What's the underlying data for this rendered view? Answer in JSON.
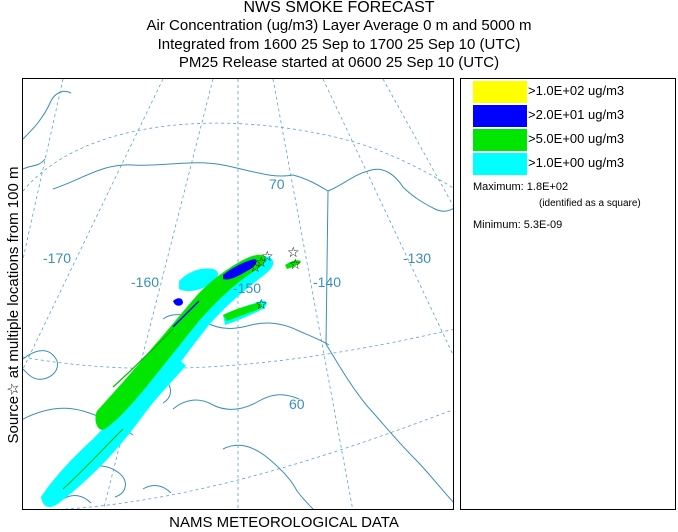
{
  "header": {
    "title": "NWS SMOKE FORECAST",
    "line2": "Air Concentration (ug/m3) Layer Average    0 m and  5000 m",
    "line3": "Integrated from 1600 25 Sep to 1700 25 Sep 10 (UTC)",
    "line4": "PM25 Release started at 0600 25 Sep 10 (UTC)"
  },
  "side_label": "Source☆ at multiple locations  from  100 m",
  "footer": "NAMS METEOROLOGICAL DATA",
  "map": {
    "graticule_labels": {
      "lon_m170": "-170",
      "lon_m160": "-160",
      "lon_m150": "-150",
      "lon_m140": "-140",
      "lon_m130": "-130",
      "lat_70": "70",
      "lat_60": "60"
    }
  },
  "legend": {
    "items": [
      {
        "color": "#ffff00",
        "label": ">1.0E+02 ug/m3"
      },
      {
        "color": "#0000ff",
        "label": ">2.0E+01 ug/m3"
      },
      {
        "color": "#00e600",
        "label": ">5.0E+00 ug/m3"
      },
      {
        "color": "#00ffff",
        "label": ">1.0E+00 ug/m3"
      }
    ],
    "maximum": "Maximum: 1.8E+02",
    "max_note": "(identified as a square)",
    "minimum": "Minimum: 5.3E-09"
  }
}
